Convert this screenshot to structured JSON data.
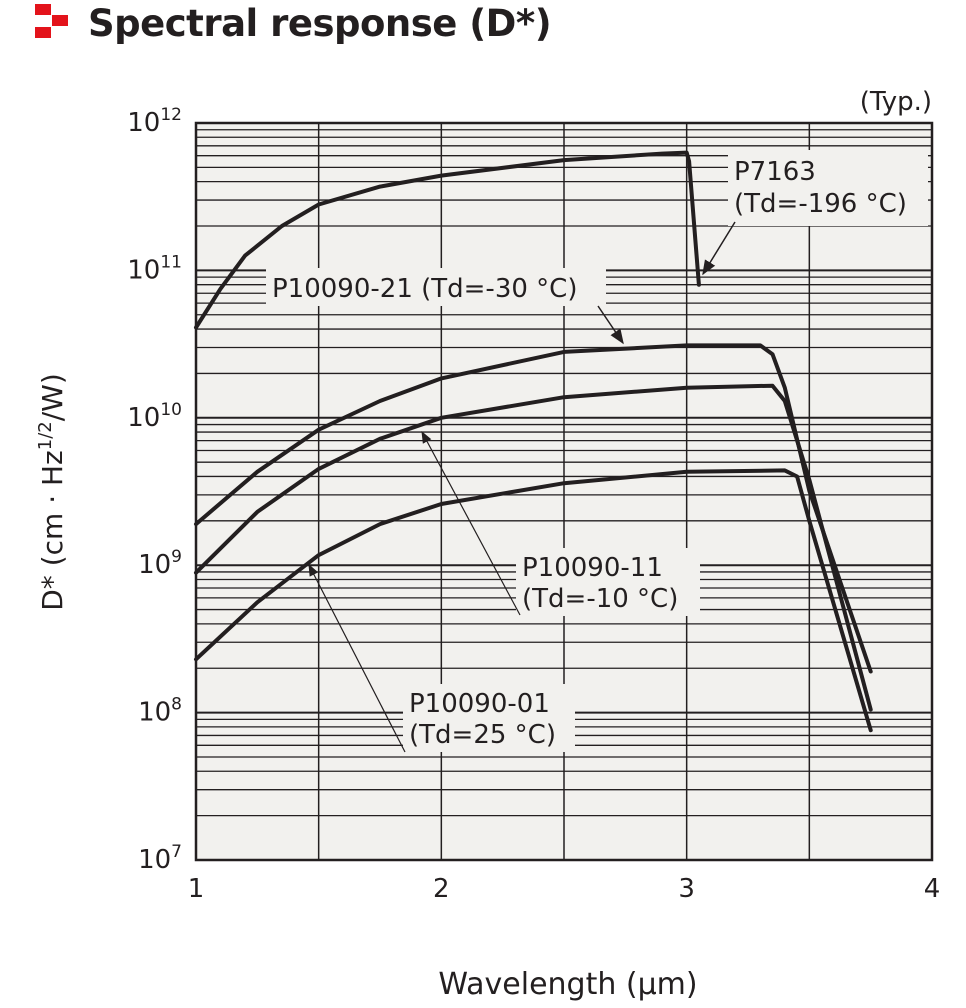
{
  "title": "Spectral response (D*)",
  "chart_data": {
    "type": "line",
    "title": "Spectral response (D*)",
    "note": "(Typ.)",
    "xlabel": "Wavelength (µm)",
    "ylabel": "D* (cm · Hz1/2/W)",
    "ylabel_parts": {
      "pre": "D* (cm · Hz",
      "sup": "1/2",
      "post": "/W)"
    },
    "xlim": [
      1,
      4
    ],
    "ylim": [
      10000000.0,
      1000000000000.0
    ],
    "yscale": "log",
    "grid": true,
    "xticks": [
      "1",
      "2",
      "3",
      "4"
    ],
    "yticks": [
      {
        "base": "10",
        "exp": "12"
      },
      {
        "base": "10",
        "exp": "11"
      },
      {
        "base": "10",
        "exp": "10"
      },
      {
        "base": "10",
        "exp": "9"
      },
      {
        "base": "10",
        "exp": "8"
      },
      {
        "base": "10",
        "exp": "7"
      }
    ],
    "series": [
      {
        "name": "P7163",
        "label_lines": [
          "P7163",
          "(Td=-196 °C)"
        ],
        "x": [
          1.0,
          1.1,
          1.2,
          1.35,
          1.5,
          1.75,
          2.0,
          2.5,
          2.9,
          3.0,
          3.01,
          3.05
        ],
        "y": [
          41000000000.0,
          75000000000.0,
          126000000000.0,
          200000000000.0,
          280000000000.0,
          370000000000.0,
          440000000000.0,
          560000000000.0,
          620000000000.0,
          630000000000.0,
          550000000000.0,
          80000000000.0
        ]
      },
      {
        "name": "P10090-21",
        "label_lines": [
          "P10090-21 (Td=-30 °C)"
        ],
        "x": [
          1.0,
          1.25,
          1.5,
          1.75,
          2.0,
          2.5,
          3.0,
          3.3,
          3.35,
          3.4,
          3.5,
          3.75
        ],
        "y": [
          1900000000.0,
          4300000000.0,
          8300000000.0,
          13000000000.0,
          18500000000.0,
          28000000000.0,
          31000000000.0,
          31000000000.0,
          27000000000.0,
          16000000000.0,
          3200000000.0,
          190000000.0
        ]
      },
      {
        "name": "P10090-11",
        "label_lines": [
          "P10090-11",
          "(Td=-10 °C)"
        ],
        "x": [
          1.0,
          1.25,
          1.5,
          1.75,
          2.0,
          2.5,
          3.0,
          3.35,
          3.4,
          3.5,
          3.75
        ],
        "y": [
          890000000.0,
          2300000000.0,
          4500000000.0,
          7200000000.0,
          10000000000.0,
          13800000000.0,
          16000000000.0,
          16500000000.0,
          13000000000.0,
          3800000000.0,
          105000000.0
        ]
      },
      {
        "name": "P10090-01",
        "label_lines": [
          "P10090-01",
          "(Td=25 °C)"
        ],
        "x": [
          1.0,
          1.25,
          1.5,
          1.75,
          2.0,
          2.5,
          3.0,
          3.4,
          3.45,
          3.5,
          3.75
        ],
        "y": [
          230000000.0,
          560000000.0,
          1170000000.0,
          1900000000.0,
          2600000000.0,
          3600000000.0,
          4300000000.0,
          4400000000.0,
          4000000000.0,
          2000000000.0,
          76000000.0
        ]
      }
    ]
  }
}
